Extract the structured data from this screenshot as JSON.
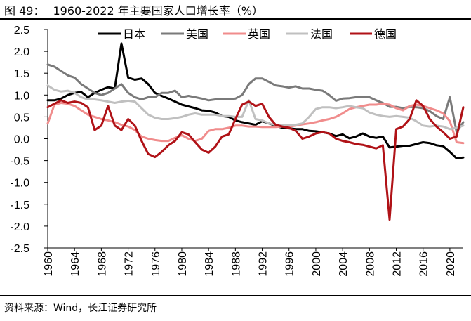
{
  "figure": {
    "label": "图 49：",
    "title": "1960-2022 年主要国家人口增长率（%）",
    "source": "资料来源：Wind，长江证券研究所"
  },
  "chart_data": {
    "type": "line",
    "title": "1960-2022 年主要国家人口增长率（%）",
    "xlabel": "",
    "ylabel": "",
    "ylim": [
      -2.5,
      2.5
    ],
    "yticks": [
      2.5,
      2.0,
      1.5,
      1.0,
      0.5,
      0.0,
      -0.5,
      -1.0,
      -1.5,
      -2.0,
      -2.5
    ],
    "ytick_labels": [
      "2.5",
      "2.0",
      "1.5",
      "1.0",
      "0.5",
      "0.0",
      "-0.5",
      "-1.0",
      "-1.5",
      "-2.0",
      "-2.5"
    ],
    "xlim": [
      1960,
      2022
    ],
    "xticks": [
      1960,
      1964,
      1968,
      1972,
      1976,
      1980,
      1984,
      1988,
      1992,
      1996,
      2000,
      2004,
      2008,
      2012,
      2016,
      2020
    ],
    "xtick_labels": [
      "1960",
      "1964",
      "1968",
      "1972",
      "1976",
      "1980",
      "1984",
      "1988",
      "1992",
      "1996",
      "2000",
      "2004",
      "2008",
      "2012",
      "2016",
      "2020"
    ],
    "grid": false,
    "legend_position": "top",
    "x": [
      1960,
      1961,
      1962,
      1963,
      1964,
      1965,
      1966,
      1967,
      1968,
      1969,
      1970,
      1971,
      1972,
      1973,
      1974,
      1975,
      1976,
      1977,
      1978,
      1979,
      1980,
      1981,
      1982,
      1983,
      1984,
      1985,
      1986,
      1987,
      1988,
      1989,
      1990,
      1991,
      1992,
      1993,
      1994,
      1995,
      1996,
      1997,
      1998,
      1999,
      2000,
      2001,
      2002,
      2003,
      2004,
      2005,
      2006,
      2007,
      2008,
      2009,
      2010,
      2011,
      2012,
      2013,
      2014,
      2015,
      2016,
      2017,
      2018,
      2019,
      2020,
      2021,
      2022
    ],
    "series": [
      {
        "name": "日本",
        "color": "#000000",
        "values": [
          0.88,
          0.88,
          0.92,
          1.0,
          1.05,
          1.07,
          0.95,
          1.05,
          1.12,
          1.18,
          1.15,
          2.18,
          1.4,
          1.35,
          1.38,
          1.25,
          1.05,
          0.98,
          0.92,
          0.85,
          0.78,
          0.74,
          0.7,
          0.65,
          0.64,
          0.6,
          0.52,
          0.5,
          0.42,
          0.38,
          0.35,
          0.32,
          0.4,
          0.35,
          0.3,
          0.25,
          0.24,
          0.22,
          0.22,
          0.18,
          0.17,
          0.15,
          0.12,
          0.06,
          0.1,
          0.01,
          0.05,
          0.12,
          0.05,
          0.02,
          0.05,
          -0.2,
          -0.18,
          -0.16,
          -0.16,
          -0.12,
          -0.08,
          -0.1,
          -0.15,
          -0.17,
          -0.3,
          -0.45,
          -0.43
        ]
      },
      {
        "name": "美国",
        "color": "#7a7a7a",
        "values": [
          1.7,
          1.65,
          1.55,
          1.45,
          1.4,
          1.25,
          1.15,
          1.05,
          1.0,
          1.05,
          1.15,
          1.25,
          1.05,
          0.95,
          0.9,
          0.95,
          0.95,
          1.05,
          1.05,
          1.1,
          0.95,
          0.98,
          0.95,
          0.92,
          0.88,
          0.9,
          0.9,
          0.9,
          0.92,
          1.0,
          1.25,
          1.38,
          1.38,
          1.3,
          1.22,
          1.2,
          1.17,
          1.2,
          1.15,
          1.15,
          1.12,
          1.1,
          1.0,
          0.87,
          0.92,
          0.93,
          0.95,
          0.95,
          0.95,
          0.88,
          0.82,
          0.73,
          0.73,
          0.7,
          0.73,
          0.72,
          0.7,
          0.63,
          0.52,
          0.45,
          0.95,
          0.15,
          0.38
        ]
      },
      {
        "name": "英国",
        "color": "#f08c8c",
        "values": [
          0.35,
          0.78,
          0.82,
          0.8,
          0.75,
          0.65,
          0.55,
          0.5,
          0.45,
          0.42,
          0.38,
          0.32,
          0.28,
          0.2,
          0.05,
          0.0,
          -0.03,
          -0.05,
          -0.05,
          0.02,
          0.08,
          0.0,
          -0.05,
          0.0,
          0.18,
          0.22,
          0.22,
          0.25,
          0.3,
          0.3,
          0.28,
          0.28,
          0.27,
          0.27,
          0.27,
          0.28,
          0.28,
          0.3,
          0.33,
          0.35,
          0.38,
          0.42,
          0.45,
          0.5,
          0.58,
          0.68,
          0.72,
          0.75,
          0.78,
          0.78,
          0.8,
          0.78,
          0.7,
          0.65,
          0.75,
          0.78,
          0.75,
          0.7,
          0.65,
          0.58,
          0.4,
          -0.08,
          -0.1
        ]
      },
      {
        "name": "法国",
        "color": "#c0c0c0",
        "values": [
          1.22,
          1.12,
          1.08,
          1.1,
          1.05,
          0.95,
          0.9,
          0.9,
          0.88,
          0.85,
          0.82,
          0.85,
          0.87,
          0.85,
          0.7,
          0.55,
          0.48,
          0.45,
          0.45,
          0.47,
          0.5,
          0.55,
          0.58,
          0.55,
          0.55,
          0.55,
          0.52,
          0.52,
          0.5,
          0.5,
          0.88,
          0.45,
          0.42,
          0.35,
          0.32,
          0.32,
          0.32,
          0.32,
          0.35,
          0.5,
          0.68,
          0.72,
          0.72,
          0.7,
          0.72,
          0.75,
          0.72,
          0.7,
          0.6,
          0.55,
          0.52,
          0.5,
          0.52,
          0.5,
          0.48,
          0.4,
          0.3,
          0.28,
          0.3,
          0.28,
          0.22,
          0.25,
          0.3
        ]
      },
      {
        "name": "德国",
        "color": "#b01217",
        "values": [
          0.72,
          0.8,
          0.88,
          0.82,
          0.85,
          0.82,
          0.72,
          0.2,
          0.3,
          0.75,
          0.3,
          0.2,
          0.45,
          0.3,
          -0.05,
          -0.35,
          -0.42,
          -0.3,
          -0.15,
          -0.05,
          0.15,
          0.1,
          -0.08,
          -0.25,
          -0.32,
          -0.18,
          0.05,
          0.1,
          0.45,
          0.78,
          0.85,
          0.75,
          0.8,
          0.5,
          0.32,
          0.28,
          0.25,
          0.18,
          0.0,
          0.05,
          0.12,
          0.15,
          0.12,
          0.0,
          -0.05,
          -0.08,
          -0.12,
          -0.14,
          -0.18,
          -0.22,
          -0.15,
          -1.85,
          0.22,
          0.28,
          0.45,
          0.88,
          0.75,
          0.45,
          0.28,
          0.15,
          0.0,
          0.05,
          0.72
        ]
      }
    ]
  }
}
